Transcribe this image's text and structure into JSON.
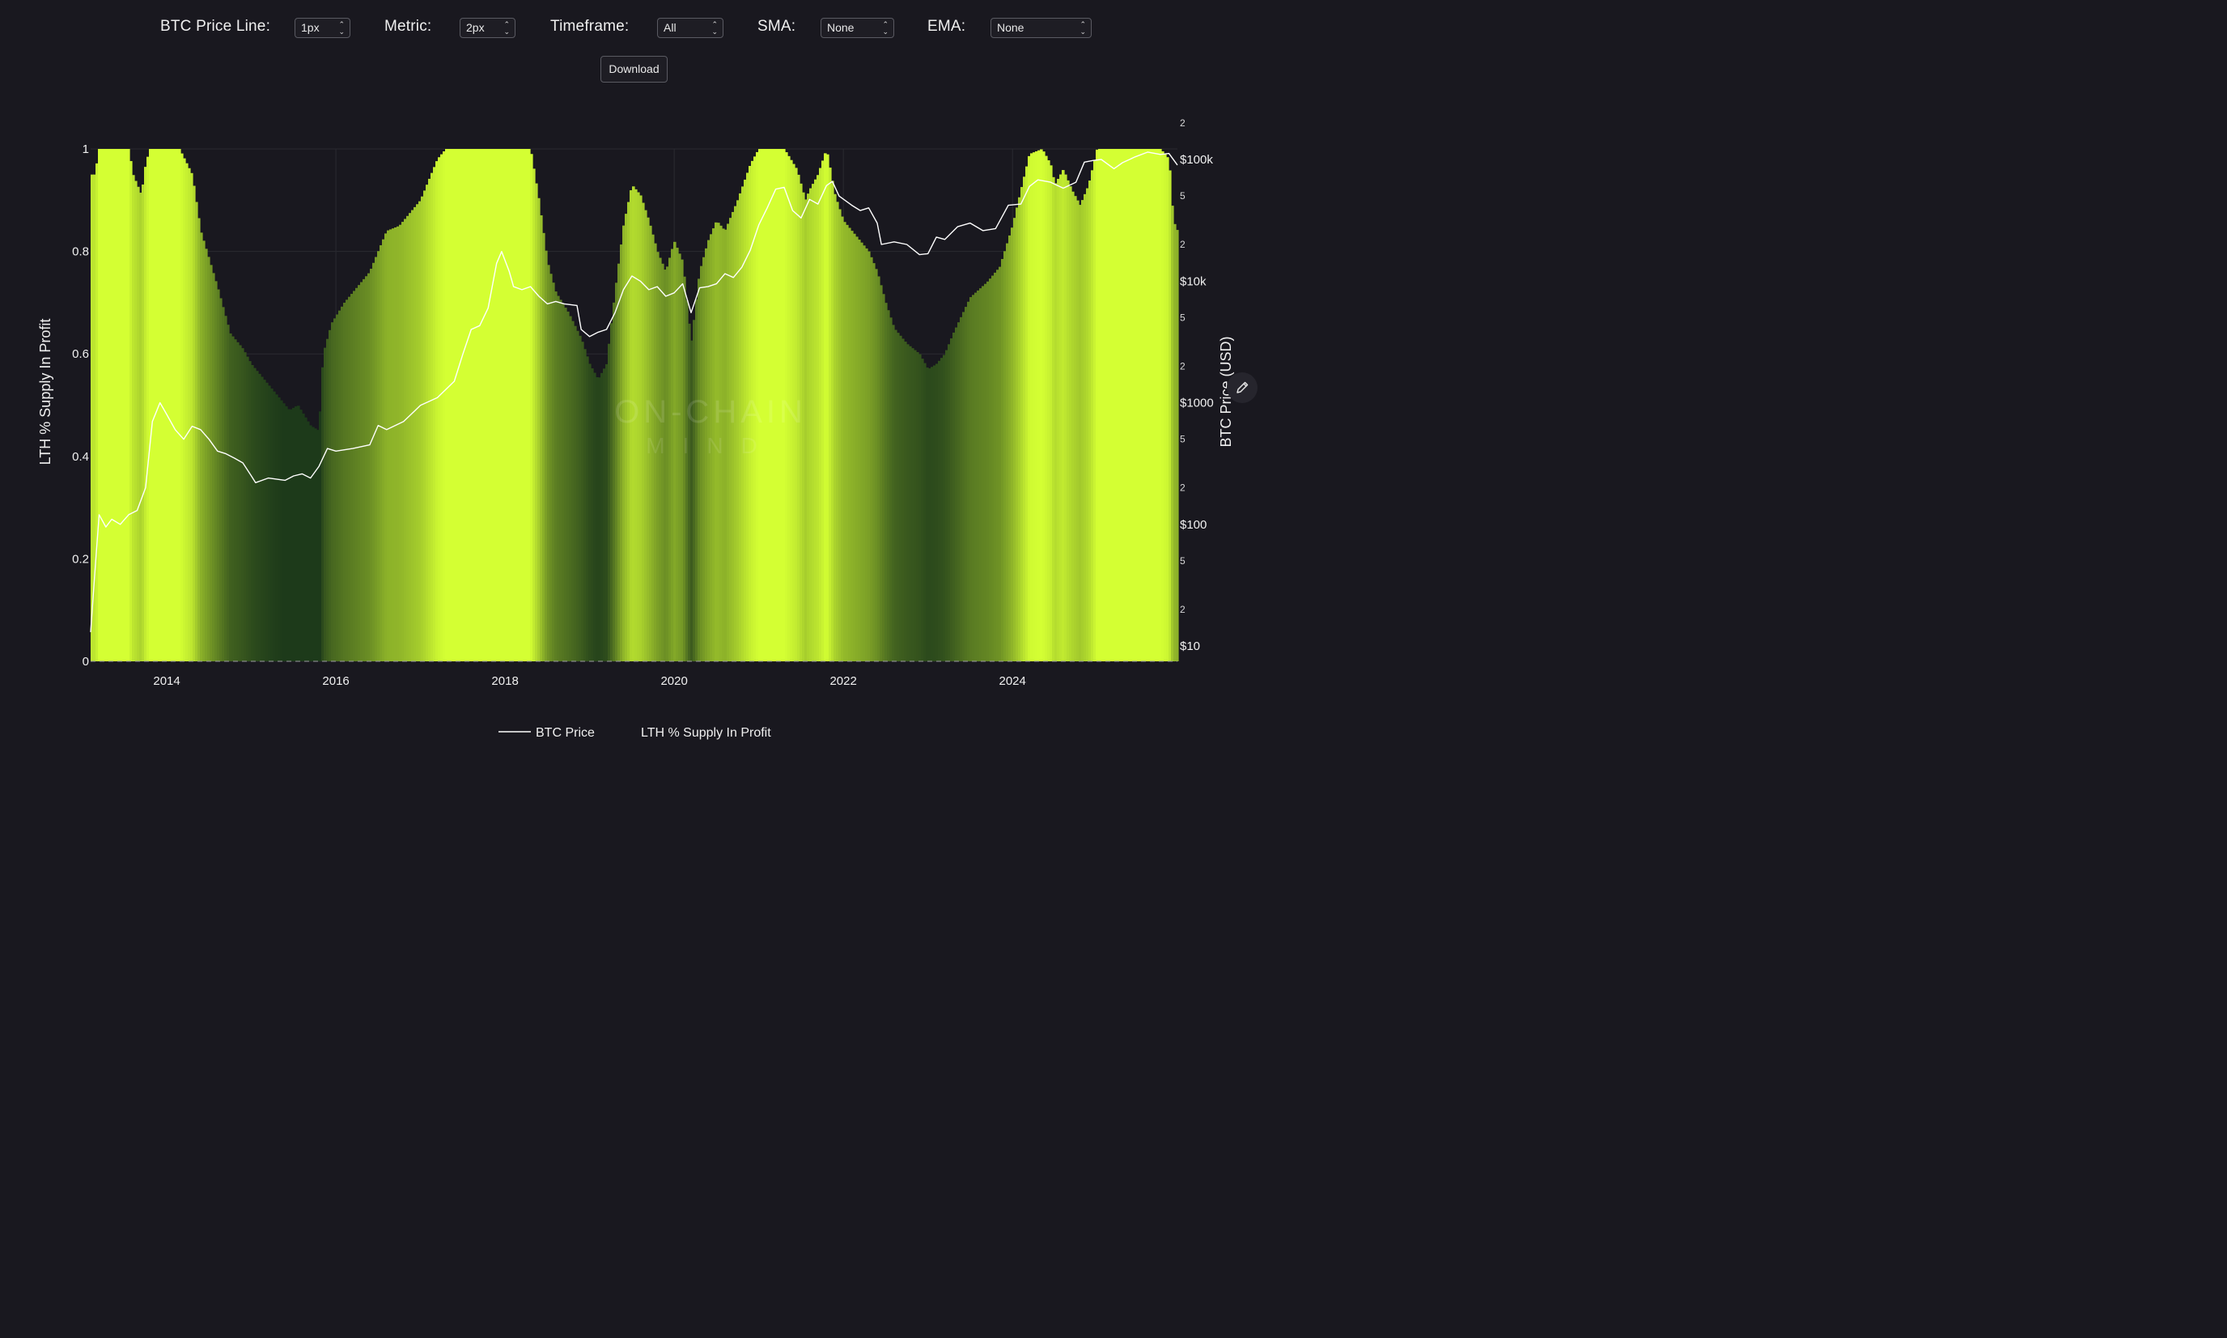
{
  "controls": {
    "price_line_label": "BTC Price Line:",
    "price_line_value": "1px",
    "metric_label": "Metric:",
    "metric_value": "2px",
    "timeframe_label": "Timeframe:",
    "timeframe_value": "All",
    "sma_label": "SMA:",
    "sma_value": "None",
    "ema_label": "EMA:",
    "ema_value": "None",
    "download_label": "Download"
  },
  "watermark": {
    "line1": "ON-CHAIN",
    "line2": "MIND"
  },
  "colors": {
    "background": "#19181f",
    "metric_high": "#d4ff33",
    "metric_low": "#1d3a1a",
    "price_line": "#ffffff",
    "grid": "#2a2a31"
  },
  "icons": {
    "edit": "pencil-icon",
    "select_arrows": "chevron-updown-icon"
  },
  "chart_data": {
    "type": "area",
    "title": "",
    "xlabel": "",
    "ylabel_left": "LTH % Supply In Profit",
    "ylabel_right": "BTC Price (USD)",
    "x_ticks": [
      "2014",
      "2016",
      "2018",
      "2020",
      "2022",
      "2024"
    ],
    "y_left_ticks": [
      "0",
      "0.2",
      "0.4",
      "0.6",
      "0.8",
      "1"
    ],
    "y_left_range": [
      0,
      1
    ],
    "y_right_scale": "log",
    "y_right_range": [
      5,
      200000
    ],
    "y_right_major_ticks": [
      {
        "value": 10,
        "label": "$10"
      },
      {
        "value": 100,
        "label": "$100"
      },
      {
        "value": 1000,
        "label": "$1000"
      },
      {
        "value": 10000,
        "label": "$10k"
      },
      {
        "value": 100000,
        "label": "$100k"
      }
    ],
    "y_right_minor_ticks": [
      {
        "value": 20,
        "label": "2"
      },
      {
        "value": 50,
        "label": "5"
      },
      {
        "value": 200,
        "label": "2"
      },
      {
        "value": 500,
        "label": "5"
      },
      {
        "value": 2000,
        "label": "2"
      },
      {
        "value": 5000,
        "label": "5"
      },
      {
        "value": 20000,
        "label": "2"
      },
      {
        "value": 50000,
        "label": "5"
      },
      {
        "value": 200000,
        "label": "2"
      }
    ],
    "x_range": [
      2013.1,
      2025.95
    ],
    "grid": true,
    "legend": {
      "placement": "bottom-center",
      "items": [
        "BTC Price",
        "LTH % Supply In Profit"
      ]
    },
    "series": [
      {
        "name": "LTH % Supply In Profit",
        "axis": "left",
        "x": [
          2013.1,
          2013.15,
          2013.2,
          2013.4,
          2013.55,
          2013.6,
          2013.7,
          2013.75,
          2013.8,
          2013.85,
          2014.0,
          2014.15,
          2014.3,
          2014.4,
          2014.6,
          2014.75,
          2014.9,
          2015.0,
          2015.1,
          2015.25,
          2015.45,
          2015.55,
          2015.7,
          2015.8,
          2015.85,
          2015.95,
          2016.1,
          2016.25,
          2016.4,
          2016.5,
          2016.6,
          2016.75,
          2016.9,
          2017.0,
          2017.1,
          2017.2,
          2017.3,
          2017.6,
          2017.9,
          2018.3,
          2018.4,
          2018.5,
          2018.6,
          2018.75,
          2018.9,
          2019.0,
          2019.1,
          2019.2,
          2019.3,
          2019.4,
          2019.5,
          2019.6,
          2019.7,
          2019.8,
          2019.9,
          2020.0,
          2020.1,
          2020.2,
          2020.3,
          2020.4,
          2020.5,
          2020.6,
          2020.75,
          2020.9,
          2021.0,
          2021.1,
          2021.3,
          2021.45,
          2021.55,
          2021.6,
          2021.7,
          2021.8,
          2021.9,
          2022.0,
          2022.2,
          2022.3,
          2022.4,
          2022.5,
          2022.6,
          2022.75,
          2022.9,
          2023.0,
          2023.1,
          2023.2,
          2023.3,
          2023.5,
          2023.7,
          2023.85,
          2024.0,
          2024.1,
          2024.2,
          2024.35,
          2024.45,
          2024.5,
          2024.6,
          2024.7,
          2024.8,
          2024.9,
          2025.0,
          2025.2,
          2025.4,
          2025.6,
          2025.75,
          2025.85,
          2025.9,
          2025.95
        ],
        "values": [
          0.95,
          0.95,
          1.0,
          1.0,
          1.0,
          0.95,
          0.91,
          0.97,
          1.0,
          1.0,
          1.0,
          1.0,
          0.95,
          0.84,
          0.73,
          0.64,
          0.61,
          0.58,
          0.56,
          0.53,
          0.49,
          0.5,
          0.46,
          0.45,
          0.6,
          0.66,
          0.7,
          0.73,
          0.76,
          0.8,
          0.84,
          0.85,
          0.88,
          0.9,
          0.94,
          0.98,
          1.0,
          1.0,
          1.0,
          1.0,
          0.9,
          0.78,
          0.72,
          0.68,
          0.63,
          0.58,
          0.55,
          0.58,
          0.72,
          0.85,
          0.93,
          0.91,
          0.86,
          0.8,
          0.76,
          0.82,
          0.78,
          0.62,
          0.76,
          0.82,
          0.86,
          0.84,
          0.9,
          0.97,
          1.0,
          1.0,
          1.0,
          0.96,
          0.9,
          0.92,
          0.95,
          1.0,
          0.91,
          0.86,
          0.82,
          0.8,
          0.76,
          0.7,
          0.65,
          0.62,
          0.6,
          0.57,
          0.58,
          0.6,
          0.64,
          0.71,
          0.74,
          0.77,
          0.85,
          0.92,
          0.99,
          1.0,
          0.97,
          0.93,
          0.96,
          0.92,
          0.89,
          0.93,
          1.0,
          1.0,
          1.0,
          1.0,
          1.0,
          0.98,
          0.86,
          0.84
        ]
      },
      {
        "name": "BTC Price",
        "axis": "right",
        "x": [
          2013.1,
          2013.15,
          2013.2,
          2013.28,
          2013.35,
          2013.45,
          2013.55,
          2013.65,
          2013.75,
          2013.83,
          2013.92,
          2014.0,
          2014.1,
          2014.2,
          2014.3,
          2014.4,
          2014.5,
          2014.6,
          2014.7,
          2014.8,
          2014.9,
          2015.0,
          2015.05,
          2015.2,
          2015.4,
          2015.5,
          2015.6,
          2015.7,
          2015.8,
          2015.9,
          2016.0,
          2016.2,
          2016.4,
          2016.5,
          2016.6,
          2016.8,
          2017.0,
          2017.2,
          2017.4,
          2017.5,
          2017.6,
          2017.7,
          2017.8,
          2017.9,
          2017.96,
          2018.05,
          2018.1,
          2018.2,
          2018.3,
          2018.4,
          2018.5,
          2018.6,
          2018.7,
          2018.85,
          2018.9,
          2019.0,
          2019.1,
          2019.2,
          2019.3,
          2019.4,
          2019.5,
          2019.6,
          2019.7,
          2019.8,
          2019.9,
          2020.0,
          2020.1,
          2020.2,
          2020.3,
          2020.4,
          2020.5,
          2020.6,
          2020.7,
          2020.8,
          2020.9,
          2021.0,
          2021.1,
          2021.2,
          2021.3,
          2021.4,
          2021.5,
          2021.6,
          2021.7,
          2021.8,
          2021.87,
          2021.95,
          2022.1,
          2022.2,
          2022.3,
          2022.4,
          2022.45,
          2022.6,
          2022.75,
          2022.9,
          2023.0,
          2023.1,
          2023.2,
          2023.35,
          2023.5,
          2023.65,
          2023.8,
          2023.95,
          2024.1,
          2024.2,
          2024.3,
          2024.45,
          2024.6,
          2024.75,
          2024.85,
          2024.95,
          2025.05,
          2025.2,
          2025.3,
          2025.45,
          2025.6,
          2025.75,
          2025.85,
          2025.95
        ],
        "values": [
          13,
          40,
          120,
          95,
          110,
          100,
          120,
          130,
          200,
          700,
          1000,
          800,
          600,
          500,
          640,
          600,
          500,
          400,
          380,
          350,
          320,
          250,
          220,
          240,
          230,
          250,
          260,
          240,
          300,
          420,
          400,
          420,
          450,
          650,
          600,
          700,
          950,
          1100,
          1500,
          2500,
          4000,
          4300,
          6000,
          14000,
          17500,
          12000,
          9000,
          8500,
          9000,
          7500,
          6500,
          6800,
          6500,
          6300,
          4000,
          3500,
          3800,
          4000,
          5500,
          8500,
          11000,
          10000,
          8500,
          9000,
          7500,
          8000,
          9500,
          5500,
          8800,
          9000,
          9500,
          11500,
          10700,
          13000,
          18000,
          29000,
          40000,
          57000,
          59000,
          38000,
          33000,
          47000,
          43000,
          61000,
          66000,
          50000,
          42000,
          38000,
          40000,
          30000,
          20000,
          21000,
          20000,
          16500,
          16800,
          23000,
          22000,
          28000,
          30000,
          26000,
          27000,
          42000,
          43000,
          60000,
          68000,
          65000,
          58000,
          65000,
          95000,
          98000,
          100000,
          84000,
          94000,
          105000,
          115000,
          110000,
          112000,
          90000
        ]
      }
    ]
  }
}
